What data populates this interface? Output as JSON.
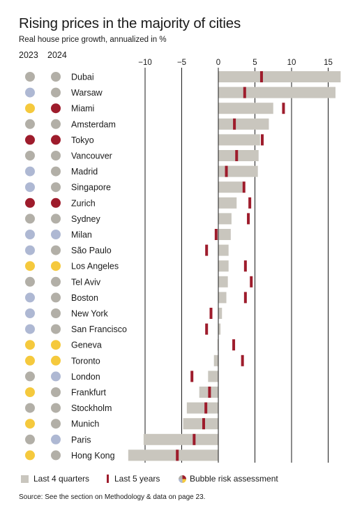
{
  "title": "Rising prices in the majority of cities",
  "subtitle": "Real house price growth, annualized in %",
  "year_2023": "2023",
  "year_2024": "2024",
  "legend": {
    "last4q": "Last 4 quarters",
    "last5y": "Last 5 years",
    "bubble": "Bubble risk assessment"
  },
  "source": "Source: See the section on Methodology & data on page 23.",
  "colors": {
    "bar": "#c9c6be",
    "tick": "#9e1c2c",
    "gray": "#b2afa7",
    "blue": "#aeb8d3",
    "yellow": "#f5c93d",
    "red": "#9e1c2c"
  },
  "chart_data": {
    "type": "bar",
    "orientation": "horizontal",
    "xlim": [
      -12,
      17
    ],
    "xticks": [
      -10,
      -5,
      0,
      5,
      10,
      15
    ],
    "grid": true,
    "categories": [
      "Dubai",
      "Warsaw",
      "Miami",
      "Amsterdam",
      "Tokyo",
      "Vancouver",
      "Madrid",
      "Singapore",
      "Zurich",
      "Sydney",
      "Milan",
      "São Paulo",
      "Los Angeles",
      "Tel Aviv",
      "Boston",
      "New York",
      "San Francisco",
      "Geneva",
      "Toronto",
      "London",
      "Frankfurt",
      "Stockholm",
      "Munich",
      "Paris",
      "Hong Kong"
    ],
    "series": [
      {
        "name": "Last 4 quarters",
        "values": [
          16.7,
          16.0,
          7.5,
          6.9,
          5.7,
          5.5,
          5.4,
          3.3,
          2.5,
          1.8,
          1.7,
          1.4,
          1.4,
          1.3,
          1.1,
          0.5,
          0.3,
          -0.1,
          -0.6,
          -1.4,
          -2.6,
          -4.3,
          -4.8,
          -10.2,
          -12.3
        ]
      },
      {
        "name": "Last 5 years",
        "values": [
          5.9,
          3.6,
          8.9,
          2.2,
          6.0,
          2.5,
          1.1,
          3.5,
          4.3,
          4.1,
          -0.3,
          -1.6,
          3.7,
          4.5,
          3.7,
          -1.0,
          -1.6,
          2.1,
          3.3,
          -3.6,
          -1.2,
          -1.7,
          -2.0,
          -3.3,
          -5.6
        ]
      }
    ],
    "bubble_risk_2023": [
      "gray",
      "blue",
      "yellow",
      "gray",
      "red",
      "gray",
      "blue",
      "blue",
      "red",
      "gray",
      "blue",
      "blue",
      "yellow",
      "gray",
      "blue",
      "blue",
      "blue",
      "yellow",
      "yellow",
      "gray",
      "yellow",
      "gray",
      "yellow",
      "gray",
      "yellow"
    ],
    "bubble_risk_2024": [
      "gray",
      "gray",
      "red",
      "gray",
      "red",
      "gray",
      "gray",
      "gray",
      "red",
      "gray",
      "blue",
      "gray",
      "yellow",
      "gray",
      "gray",
      "gray",
      "gray",
      "yellow",
      "yellow",
      "blue",
      "gray",
      "gray",
      "gray",
      "blue",
      "gray"
    ]
  }
}
